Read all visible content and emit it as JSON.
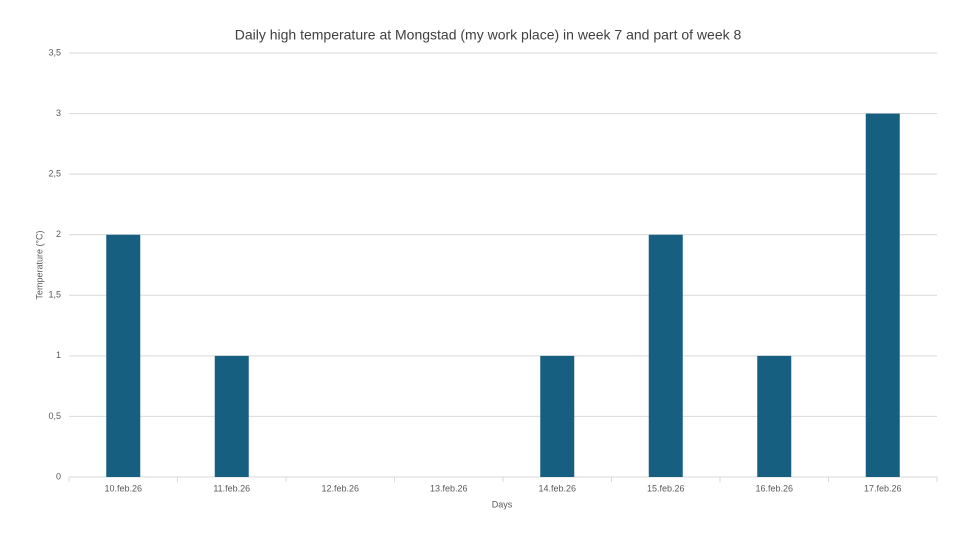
{
  "chart_data": {
    "type": "bar",
    "title": "Daily high temperature at Mongstad (my work place) in week 7 and part of week 8",
    "x_label": "Days",
    "y_label": "Temperature (°C)",
    "categories": [
      "10.feb.26",
      "11.feb.26",
      "12.feb.26",
      "13.feb.26",
      "14.feb.26",
      "15.feb.26",
      "16.feb.26",
      "17.feb.26"
    ],
    "values": [
      2,
      1,
      0,
      0,
      1,
      2,
      1,
      3
    ],
    "color": "#175f81",
    "ylim": [
      0,
      3.5
    ],
    "yticks": [
      0,
      {
        "value": 0.5,
        "label": "0,5"
      },
      1,
      {
        "value": 1.5,
        "label": "1,5"
      },
      2,
      {
        "value": 2.5,
        "label": "2,5"
      },
      3,
      {
        "value": 3.5,
        "label": "3,5"
      }
    ],
    "grid": true
  }
}
